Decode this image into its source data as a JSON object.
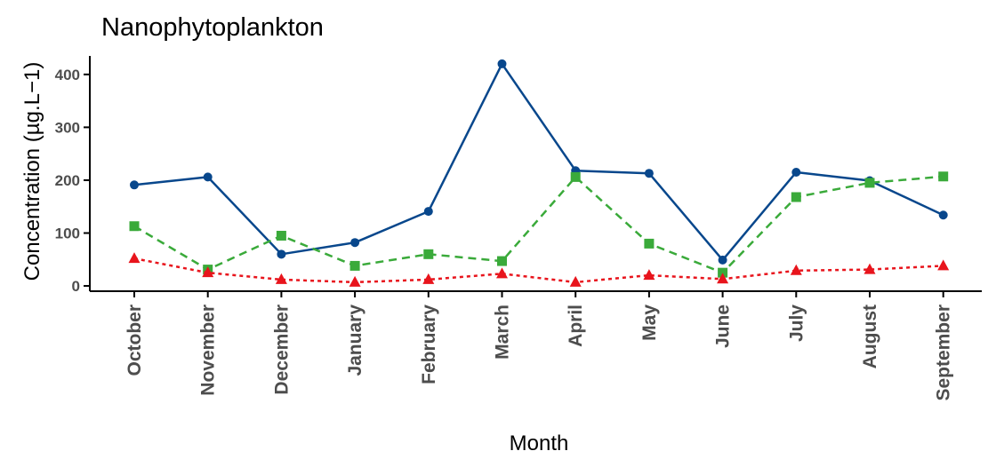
{
  "chart_data": {
    "type": "line",
    "title": "Nanophytoplankton",
    "xlabel": "Month",
    "ylabel": "Concentration (µg.L−1)",
    "categories": [
      "October",
      "November",
      "December",
      "January",
      "February",
      "March",
      "April",
      "May",
      "June",
      "July",
      "August",
      "September"
    ],
    "yticks": [
      0,
      100,
      200,
      300,
      400
    ],
    "ylim": [
      -10,
      435
    ],
    "grid": false,
    "legend": "none",
    "series": [
      {
        "color": "#08478c",
        "line_style": "solid",
        "marker": "circle",
        "values": [
          191,
          206,
          60,
          82,
          141,
          420,
          218,
          213,
          49,
          215,
          199,
          134
        ]
      },
      {
        "color": "#3aaa3a",
        "line_style": "dashed",
        "marker": "square",
        "values": [
          113,
          31,
          95,
          38,
          60,
          47,
          206,
          80,
          25,
          168,
          195,
          207
        ]
      },
      {
        "color": "#e8141c",
        "line_style": "dotted",
        "marker": "triangle",
        "values": [
          52,
          25,
          12,
          7,
          12,
          23,
          7,
          20,
          13,
          29,
          31,
          38
        ]
      }
    ]
  }
}
